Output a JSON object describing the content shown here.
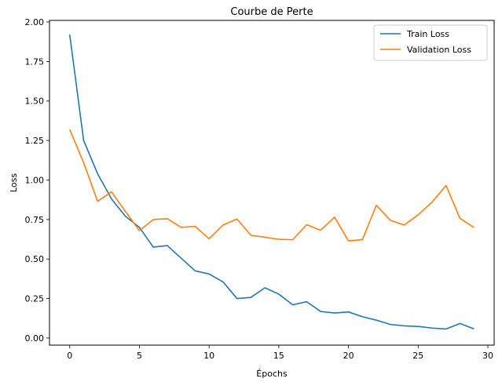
{
  "chart_data": {
    "type": "line",
    "title": "Courbe de Perte",
    "xlabel": "Épochs",
    "ylabel": "Loss",
    "xlim": [
      -1.45,
      30.45
    ],
    "ylim": [
      -0.045,
      2.01
    ],
    "xticks": [
      0,
      5,
      10,
      15,
      20,
      25,
      30
    ],
    "yticks": [
      0.0,
      0.25,
      0.5,
      0.75,
      1.0,
      1.25,
      1.5,
      1.75,
      2.0
    ],
    "ytick_labels": [
      "0.00",
      "0.25",
      "0.50",
      "0.75",
      "1.00",
      "1.25",
      "1.50",
      "1.75",
      "2.00"
    ],
    "grid": false,
    "legend_position": "top-right",
    "x": [
      0,
      1,
      2,
      3,
      4,
      5,
      6,
      7,
      8,
      9,
      10,
      11,
      12,
      13,
      14,
      15,
      16,
      17,
      18,
      19,
      20,
      21,
      22,
      23,
      24,
      25,
      26,
      27,
      28,
      29
    ],
    "series": [
      {
        "name": "Train Loss",
        "color": "#1f77b4",
        "values": [
          1.92,
          1.25,
          1.04,
          0.88,
          0.77,
          0.7,
          0.575,
          0.585,
          0.505,
          0.425,
          0.405,
          0.355,
          0.25,
          0.257,
          0.318,
          0.278,
          0.21,
          0.23,
          0.168,
          0.158,
          0.165,
          0.135,
          0.113,
          0.086,
          0.077,
          0.073,
          0.063,
          0.057,
          0.092,
          0.058
        ]
      },
      {
        "name": "Validation Loss",
        "color": "#ff7f0e",
        "values": [
          1.32,
          1.11,
          0.865,
          0.925,
          0.8,
          0.68,
          0.75,
          0.755,
          0.7,
          0.707,
          0.628,
          0.715,
          0.753,
          0.65,
          0.638,
          0.625,
          0.622,
          0.717,
          0.682,
          0.765,
          0.615,
          0.623,
          0.84,
          0.745,
          0.715,
          0.78,
          0.86,
          0.965,
          0.757,
          0.7
        ]
      }
    ]
  }
}
